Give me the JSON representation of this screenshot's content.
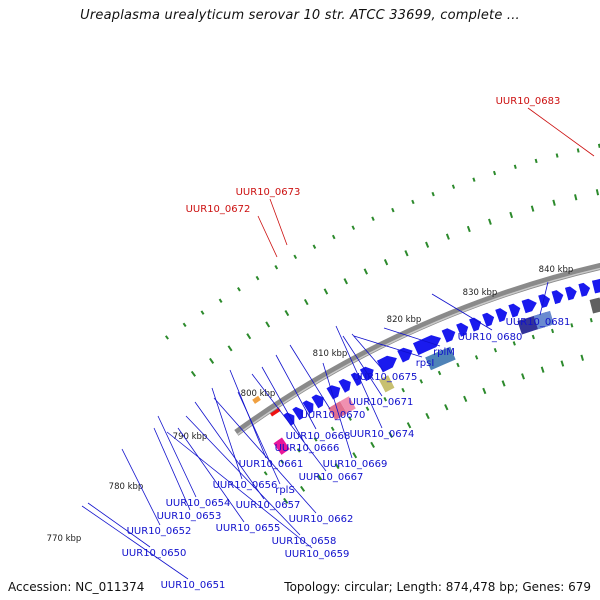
{
  "title": "Ureaplasma urealyticum serovar 10 str. ATCC 33699, complete ...",
  "footer": {
    "accession": "Accession: NC_011374",
    "summary": "Topology: circular; Length: 874,478 bp; Genes: 679"
  },
  "colors": {
    "backbone": "#8a8a8a",
    "cds": "#1a1aee",
    "trna": "#ee1111",
    "rrna": "#e8189a",
    "ticks": "#2c8a2c",
    "label_blue": "#1010cc",
    "label_red": "#cc1010"
  },
  "scale": {
    "unit": "kbp",
    "ticks": [
      "770 kbp",
      "780 kbp",
      "790 kbp",
      "800 kbp",
      "810 kbp",
      "820 kbp",
      "830 kbp",
      "840 kbp"
    ]
  },
  "gene_labels": [
    {
      "text": "UUR10_0683",
      "color": "red"
    },
    {
      "text": "UUR10_0673",
      "color": "red"
    },
    {
      "text": "UUR10_0672",
      "color": "red"
    },
    {
      "text": "UUR10_0681",
      "color": "blue"
    },
    {
      "text": "UUR10_0680",
      "color": "blue"
    },
    {
      "text": "rplM",
      "color": "blue"
    },
    {
      "text": "rpsI",
      "color": "blue"
    },
    {
      "text": "UUR10_0675",
      "color": "blue"
    },
    {
      "text": "UUR10_0671",
      "color": "blue"
    },
    {
      "text": "UUR10_0674",
      "color": "blue"
    },
    {
      "text": "UUR10_0670",
      "color": "blue"
    },
    {
      "text": "UUR10_0668",
      "color": "blue"
    },
    {
      "text": "UUR10_0666",
      "color": "blue"
    },
    {
      "text": "UUR10_0669",
      "color": "blue"
    },
    {
      "text": "UUR10_0661",
      "color": "blue"
    },
    {
      "text": "UUR10_0667",
      "color": "blue"
    },
    {
      "text": "UUR10_0656",
      "color": "blue"
    },
    {
      "text": "rplS",
      "color": "blue"
    },
    {
      "text": "UUR10_0654",
      "color": "blue"
    },
    {
      "text": "UUR10_0657",
      "color": "blue"
    },
    {
      "text": "UUR10_0653",
      "color": "blue"
    },
    {
      "text": "UUR10_0662",
      "color": "blue"
    },
    {
      "text": "UUR10_0652",
      "color": "blue"
    },
    {
      "text": "UUR10_0655",
      "color": "blue"
    },
    {
      "text": "UUR10_0658",
      "color": "blue"
    },
    {
      "text": "UUR10_0650",
      "color": "blue"
    },
    {
      "text": "UUR10_0659",
      "color": "blue"
    },
    {
      "text": "UUR10_0651",
      "color": "blue"
    }
  ]
}
